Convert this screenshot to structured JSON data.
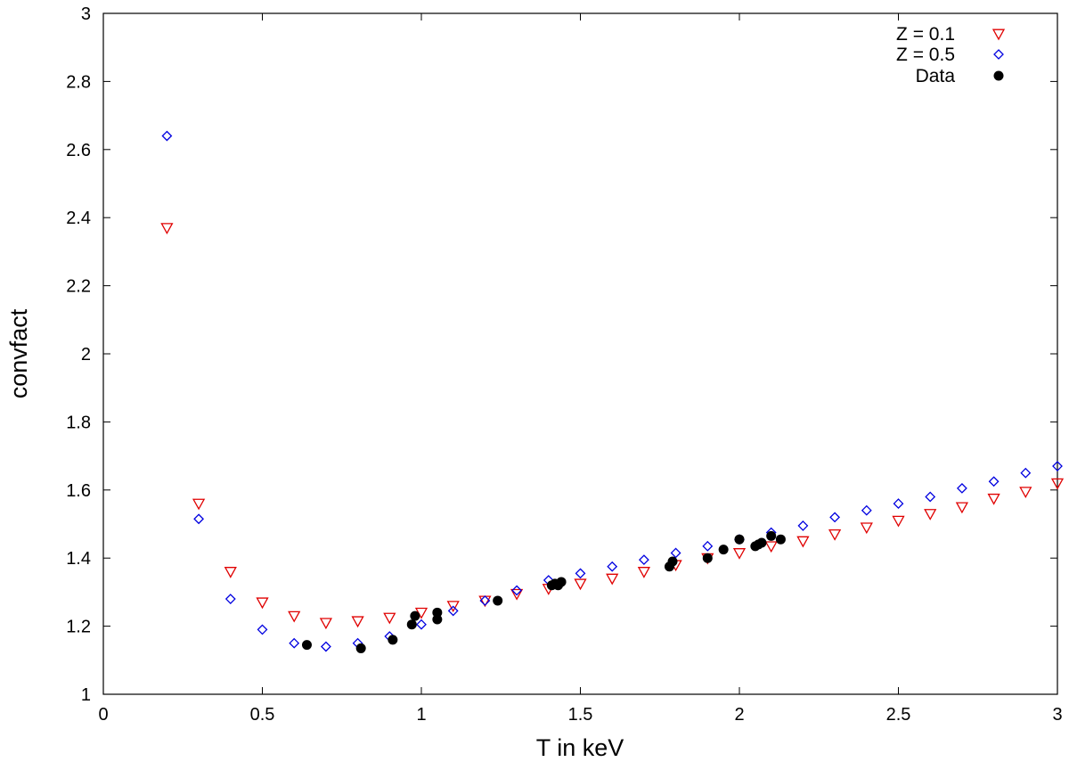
{
  "chart_data": {
    "type": "scatter",
    "title": "",
    "xlabel": "T in keV",
    "ylabel": "convfact",
    "xlim": [
      0,
      3
    ],
    "ylim": [
      1,
      3
    ],
    "xticks": [
      0,
      0.5,
      1,
      1.5,
      2,
      2.5,
      3
    ],
    "xtick_labels": [
      "0",
      "0.5",
      "1",
      "1.5",
      "2",
      "2.5",
      "3"
    ],
    "yticks": [
      1,
      1.2,
      1.4,
      1.6,
      1.8,
      2,
      2.2,
      2.4,
      2.6,
      2.8,
      3
    ],
    "ytick_labels": [
      "1",
      "1.2",
      "1.4",
      "1.6",
      "1.8",
      "2",
      "2.2",
      "2.4",
      "2.6",
      "2.8",
      "3"
    ],
    "grid": false,
    "legend_position": "top-right",
    "series": [
      {
        "name": "Z = 0.1",
        "marker": "triangle-down-open",
        "color": "#e00000",
        "x": [
          0.2,
          0.3,
          0.4,
          0.5,
          0.6,
          0.7,
          0.8,
          0.9,
          1.0,
          1.1,
          1.2,
          1.3,
          1.4,
          1.5,
          1.6,
          1.7,
          1.8,
          1.9,
          2.0,
          2.1,
          2.2,
          2.3,
          2.4,
          2.5,
          2.6,
          2.7,
          2.8,
          2.9,
          3.0
        ],
        "y": [
          2.37,
          1.56,
          1.36,
          1.27,
          1.23,
          1.21,
          1.215,
          1.225,
          1.24,
          1.26,
          1.275,
          1.295,
          1.31,
          1.325,
          1.34,
          1.36,
          1.38,
          1.4,
          1.415,
          1.435,
          1.45,
          1.47,
          1.49,
          1.51,
          1.53,
          1.55,
          1.575,
          1.595,
          1.62
        ]
      },
      {
        "name": "Z = 0.5",
        "marker": "diamond-open",
        "color": "#0000e0",
        "x": [
          0.2,
          0.3,
          0.4,
          0.5,
          0.6,
          0.7,
          0.8,
          0.9,
          1.0,
          1.1,
          1.2,
          1.3,
          1.4,
          1.5,
          1.6,
          1.7,
          1.8,
          1.9,
          2.0,
          2.1,
          2.2,
          2.3,
          2.4,
          2.5,
          2.6,
          2.7,
          2.8,
          2.9,
          3.0
        ],
        "y": [
          2.64,
          1.515,
          1.28,
          1.19,
          1.15,
          1.14,
          1.15,
          1.17,
          1.205,
          1.245,
          1.275,
          1.305,
          1.335,
          1.355,
          1.375,
          1.395,
          1.415,
          1.435,
          1.455,
          1.475,
          1.495,
          1.52,
          1.54,
          1.56,
          1.58,
          1.605,
          1.625,
          1.65,
          1.67
        ]
      },
      {
        "name": "Data",
        "marker": "circle-filled",
        "color": "#000000",
        "x": [
          0.64,
          0.81,
          0.91,
          0.97,
          0.98,
          1.05,
          1.05,
          1.24,
          1.41,
          1.42,
          1.43,
          1.44,
          1.78,
          1.79,
          1.9,
          1.95,
          2.0,
          2.05,
          2.06,
          2.07,
          2.1,
          2.13
        ],
        "y": [
          1.145,
          1.135,
          1.16,
          1.205,
          1.23,
          1.22,
          1.24,
          1.275,
          1.32,
          1.325,
          1.32,
          1.33,
          1.375,
          1.39,
          1.4,
          1.425,
          1.455,
          1.435,
          1.44,
          1.445,
          1.465,
          1.455
        ]
      }
    ]
  }
}
